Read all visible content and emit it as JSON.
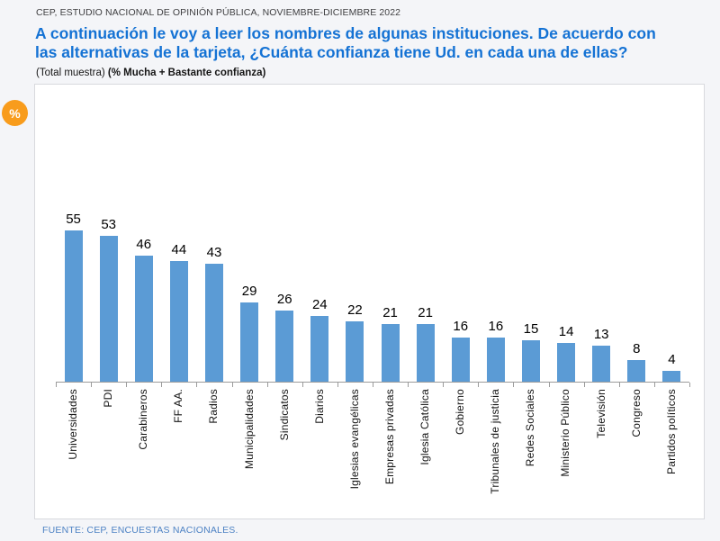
{
  "header": {
    "source_line": "CEP, ESTUDIO NACIONAL DE OPINIÓN PÚBLICA, NOVIEMBRE-DICIEMBRE 2022",
    "title_line1": "A continuación le voy a leer los nombres de algunas instituciones. De acuerdo con",
    "title_line2": "las alternativas de la tarjeta, ¿Cuánta confianza tiene Ud. en cada una de ellas?",
    "subtitle_regular": "(Total muestra) ",
    "subtitle_bold": "(% Mucha + Bastante confianza)",
    "percent_badge": "%"
  },
  "chart_data": {
    "type": "bar",
    "title": "A continuación le voy a leer los nombres de algunas instituciones. De acuerdo con las alternativas de la tarjeta, ¿Cuánta confianza tiene Ud. en cada una de ellas?",
    "subtitle": "(Total muestra) (% Mucha + Bastante confianza)",
    "categories": [
      "Universidades",
      "PDI",
      "Carabineros",
      "FF AA.",
      "Radios",
      "Municipalidades",
      "Sindicatos",
      "Diarios",
      "Iglesias evangélicas",
      "Empresas privadas",
      "Iglesia Católica",
      "Gobierno",
      "Tribunales de justicia",
      "Redes Sociales",
      "Ministerio Público",
      "Televisión",
      "Congreso",
      "Partidos políticos"
    ],
    "values": [
      55,
      53,
      46,
      44,
      43,
      29,
      26,
      24,
      22,
      21,
      21,
      16,
      16,
      15,
      14,
      13,
      8,
      4
    ],
    "bar_color": "#5b9bd5",
    "xlabel": "",
    "ylabel": "%",
    "ylim": [
      0,
      60
    ],
    "grid": false,
    "legend": "none",
    "data_labels": true,
    "label_rotation": 90
  },
  "footer": {
    "source": "FUENTE: CEP, ENCUESTAS NACIONALES."
  },
  "colors": {
    "title_blue": "#1472d4",
    "bar_blue": "#5b9bd5",
    "badge_orange": "#f89c1c",
    "footer_blue": "#4d82c4",
    "page_background": "#f4f5f8"
  }
}
